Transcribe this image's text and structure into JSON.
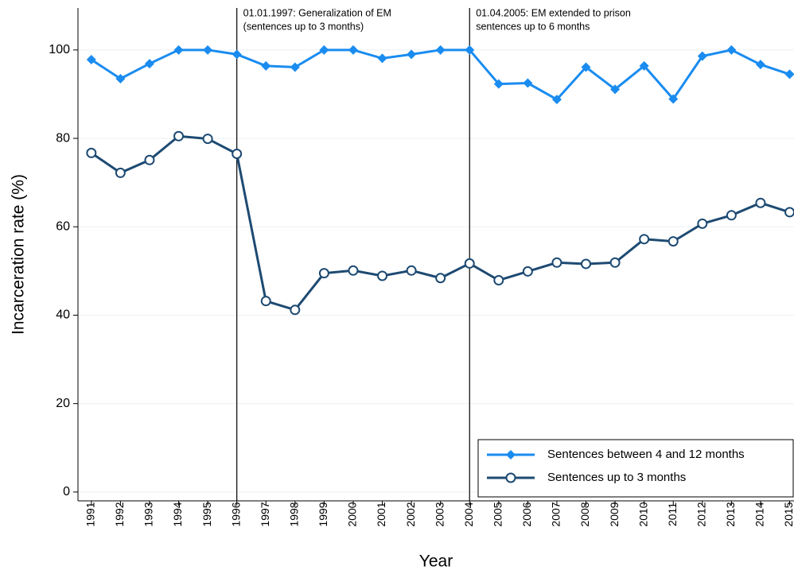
{
  "chart_data": {
    "type": "line",
    "xlabel": "Year",
    "ylabel": "Incarceration rate (%)",
    "x": [
      1991,
      1992,
      1993,
      1994,
      1995,
      1996,
      1997,
      1998,
      1999,
      2000,
      2001,
      2002,
      2003,
      2004,
      2005,
      2006,
      2007,
      2008,
      2009,
      2010,
      2011,
      2012,
      2013,
      2014,
      2015
    ],
    "series": [
      {
        "name": "Sentences between 4 and 12 months",
        "color": "#1a8cf0",
        "marker": "diamond",
        "values": [
          97.8,
          93.5,
          96.9,
          100,
          100,
          99,
          96.4,
          96.1,
          100,
          100,
          98.1,
          99,
          100,
          100,
          92.3,
          92.5,
          88.8,
          96.1,
          91.1,
          96.4,
          88.9,
          98.6,
          100,
          96.7,
          94.5
        ]
      },
      {
        "name": "Sentences up to 3 months",
        "color": "#1d4a72",
        "marker": "hollow-circle",
        "values": [
          76.7,
          72.2,
          75.1,
          80.5,
          79.9,
          76.5,
          43.2,
          41.2,
          49.5,
          50.1,
          48.9,
          50.1,
          48.4,
          51.7,
          47.9,
          49.9,
          51.9,
          51.6,
          51.9,
          57.2,
          56.7,
          60.7,
          62.6,
          65.4,
          63.3
        ]
      }
    ],
    "xlim": [
      1990.54,
      2015.15
    ],
    "xticks": [
      1991,
      1992,
      1993,
      1994,
      1995,
      1996,
      1997,
      1998,
      1999,
      2000,
      2001,
      2002,
      2003,
      2004,
      2005,
      2006,
      2007,
      2008,
      2009,
      2010,
      2011,
      2012,
      2013,
      2014,
      2015
    ],
    "ylim": [
      -2,
      109.5
    ],
    "yticks": [
      0,
      20,
      40,
      60,
      80,
      100
    ],
    "grid": true,
    "legend": "lower right",
    "annotations": [
      {
        "x": 1996,
        "text": [
          "01.01.1997: Generalization of EM",
          "(sentences up to 3 months)"
        ]
      },
      {
        "x": 2004,
        "text": [
          "01.04.2005: EM extended to prison",
          "sentences up to 6 months"
        ]
      }
    ]
  }
}
